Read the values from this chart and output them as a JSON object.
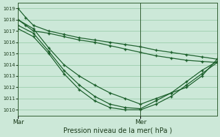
{
  "title": "",
  "xlabel": "Pression niveau de la mer( hPa )",
  "bg_color": "#cce8d8",
  "grid_color": "#99ccaa",
  "line_color": "#1a5e2a",
  "ylim": [
    1009.5,
    1019.5
  ],
  "yticks": [
    1010,
    1011,
    1012,
    1013,
    1014,
    1015,
    1016,
    1017,
    1018,
    1019
  ],
  "xlim": [
    0,
    52
  ],
  "xtick_positions": [
    0,
    32
  ],
  "xtick_labels": [
    "Mar",
    "Mer"
  ],
  "vline_x": 32,
  "lines": [
    [
      0,
      1019.0,
      2,
      1018.2,
      4,
      1017.5,
      8,
      1017.0,
      12,
      1016.7,
      16,
      1016.4,
      20,
      1016.2,
      24,
      1016.0,
      28,
      1015.8,
      32,
      1015.6,
      36,
      1015.3,
      40,
      1015.1,
      44,
      1014.9,
      48,
      1014.7,
      52,
      1014.5
    ],
    [
      0,
      1018.0,
      2,
      1017.5,
      4,
      1017.0,
      8,
      1016.8,
      12,
      1016.5,
      16,
      1016.2,
      20,
      1016.0,
      24,
      1015.7,
      28,
      1015.4,
      32,
      1015.1,
      36,
      1014.8,
      40,
      1014.6,
      44,
      1014.4,
      48,
      1014.3,
      52,
      1014.2
    ],
    [
      0,
      1018.0,
      4,
      1017.2,
      8,
      1015.5,
      12,
      1014.0,
      16,
      1013.0,
      20,
      1012.2,
      24,
      1011.5,
      28,
      1011.0,
      32,
      1010.5,
      36,
      1011.0,
      40,
      1011.5,
      44,
      1012.0,
      48,
      1013.0,
      52,
      1014.5
    ],
    [
      0,
      1017.5,
      4,
      1016.8,
      8,
      1015.2,
      12,
      1013.5,
      16,
      1012.2,
      20,
      1011.2,
      24,
      1010.5,
      28,
      1010.2,
      32,
      1010.1,
      36,
      1010.8,
      40,
      1011.5,
      44,
      1012.5,
      48,
      1013.5,
      52,
      1014.3
    ],
    [
      0,
      1017.2,
      4,
      1016.5,
      8,
      1015.0,
      12,
      1013.2,
      16,
      1011.8,
      20,
      1010.8,
      24,
      1010.2,
      28,
      1010.0,
      32,
      1010.0,
      36,
      1010.5,
      40,
      1011.2,
      44,
      1012.2,
      48,
      1013.2,
      52,
      1014.2
    ]
  ]
}
